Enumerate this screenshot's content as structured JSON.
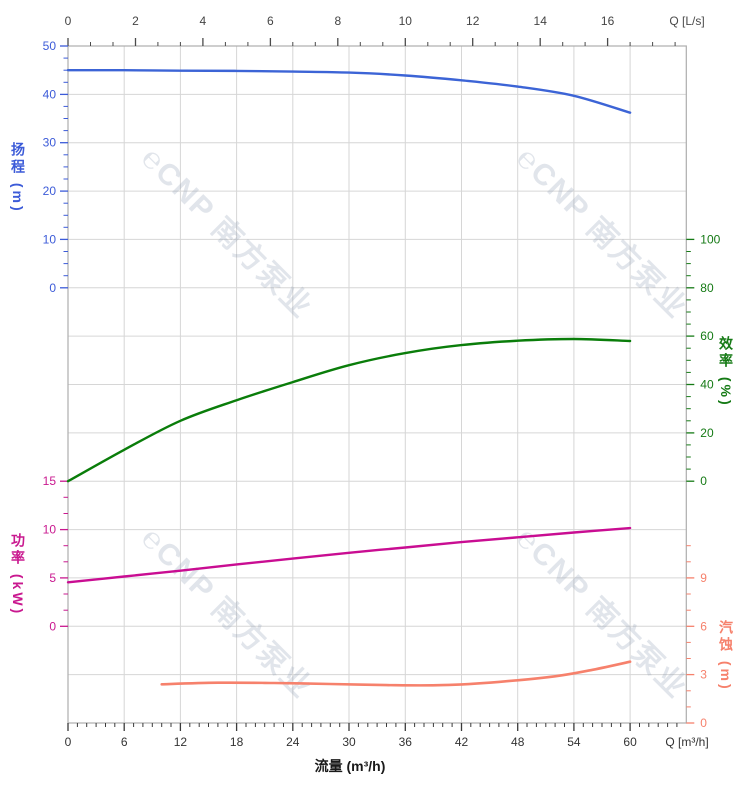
{
  "watermark": {
    "logo": "℮",
    "text": "CNP 南方泵业",
    "color": "#8c9ab0"
  },
  "chart_data": {
    "type": "line",
    "title": "",
    "grid": {
      "rows": 14,
      "cols": 11,
      "visible": true
    },
    "x_bottom": {
      "title": "流量 (m³/h)",
      "unit_label": "Q [m³/h]",
      "min": 0,
      "max": 66,
      "major_ticks": [
        0,
        6,
        12,
        18,
        24,
        30,
        36,
        42,
        48,
        54,
        60
      ],
      "minor_step": 1,
      "tick_color": "#3a3a3a"
    },
    "x_top": {
      "unit_label": "Q [L/s]",
      "min": 0,
      "max": 18.3,
      "major_ticks": [
        0,
        2,
        4,
        6,
        8,
        10,
        12,
        14,
        16
      ],
      "minor_step": 0.6667,
      "scale_to_bottom": 3.6,
      "tick_color": "#4a4a4a"
    },
    "y_axes": [
      {
        "id": "head",
        "title": "扬程 (m)",
        "side": "left",
        "color": "#3c5bd8",
        "major_ticks": [
          50,
          40,
          30,
          20,
          10,
          0
        ],
        "minor_step": 2.5,
        "value_top": 50,
        "value_bottom": 0,
        "row_top": 0,
        "row_bottom": 5
      },
      {
        "id": "efficiency",
        "title": "效率 (%)",
        "side": "right",
        "color": "#157a15",
        "major_ticks": [
          100,
          80,
          60,
          40,
          20,
          0
        ],
        "minor_step": 5,
        "value_top": 100,
        "value_bottom": 0,
        "row_top": 4,
        "row_bottom": 9
      },
      {
        "id": "power",
        "title": "功率 (kW)",
        "side": "left",
        "color": "#c9188f",
        "major_ticks": [
          15,
          10,
          5,
          0
        ],
        "minor_step": 1.6667,
        "value_top": 15,
        "value_bottom": 0,
        "row_top": 9,
        "row_bottom": 12
      },
      {
        "id": "npsh",
        "title": "汽蚀 (m)",
        "side": "right",
        "color": "#f6816c",
        "major_ticks": [
          9,
          6,
          3,
          0
        ],
        "minor_step": 1,
        "minor_max": 11,
        "value_top": 9,
        "value_bottom": 0,
        "row_top": 11,
        "row_bottom": 14
      }
    ],
    "series": [
      {
        "name": "head-curve",
        "axis": "head",
        "color": "#3c64d6",
        "width": 2.4,
        "x": [
          0,
          6,
          12,
          18,
          24,
          30,
          36,
          42,
          48,
          54,
          60
        ],
        "y": [
          45.0,
          45.0,
          44.9,
          44.85,
          44.7,
          44.5,
          43.9,
          42.9,
          41.6,
          39.7,
          36.2
        ]
      },
      {
        "name": "efficiency-curve",
        "axis": "efficiency",
        "color": "#0a7d0a",
        "width": 2.4,
        "x": [
          0,
          6,
          12,
          18,
          24,
          30,
          36,
          42,
          48,
          54,
          60
        ],
        "y": [
          0,
          13,
          25,
          33.5,
          41,
          48,
          53,
          56.3,
          58.1,
          58.8,
          58.0
        ]
      },
      {
        "name": "power-curve",
        "axis": "power",
        "color": "#c90d92",
        "width": 2.4,
        "x": [
          0,
          6,
          12,
          18,
          24,
          30,
          36,
          42,
          48,
          54,
          60
        ],
        "y": [
          4.55,
          5.15,
          5.75,
          6.4,
          7.0,
          7.6,
          8.15,
          8.7,
          9.2,
          9.7,
          10.15
        ]
      },
      {
        "name": "npsh-curve",
        "axis": "npsh",
        "color": "#f6816c",
        "width": 2.6,
        "x": [
          10,
          16,
          22,
          28,
          34,
          40,
          46,
          52,
          56,
          60
        ],
        "y": [
          2.4,
          2.5,
          2.48,
          2.42,
          2.35,
          2.35,
          2.55,
          2.9,
          3.3,
          3.8
        ]
      }
    ],
    "frame_color": "#adadad",
    "grid_color": "#d6d6d6"
  }
}
